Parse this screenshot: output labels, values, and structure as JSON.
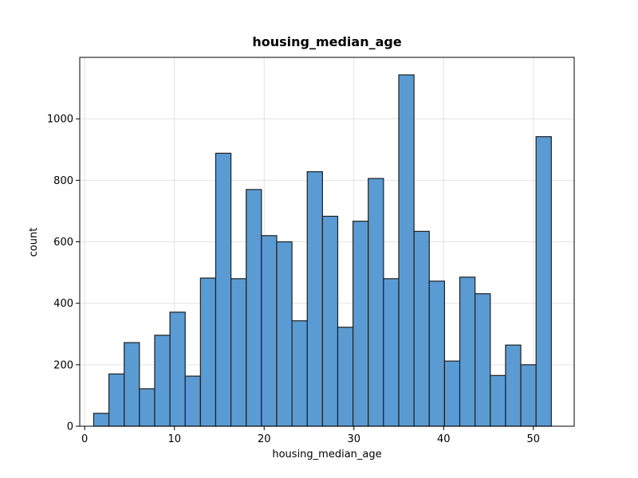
{
  "chart_data": {
    "type": "bar",
    "title": "housing_median_age",
    "xlabel": "housing_median_age",
    "ylabel": "count",
    "xlim": [
      -0.55,
      54.55
    ],
    "ylim": [
      0,
      1200
    ],
    "xticks": [
      0,
      10,
      20,
      30,
      40,
      50
    ],
    "yticks": [
      0,
      200,
      400,
      600,
      800,
      1000
    ],
    "grid": true,
    "bar_color": "#5a9bd4",
    "edge_color": "#1f1f1f",
    "bins": [
      {
        "x0": 1.0,
        "x1": 2.7,
        "count": 42
      },
      {
        "x0": 2.7,
        "x1": 4.4,
        "count": 170
      },
      {
        "x0": 4.4,
        "x1": 6.1,
        "count": 272
      },
      {
        "x0": 6.1,
        "x1": 7.8,
        "count": 122
      },
      {
        "x0": 7.8,
        "x1": 9.5,
        "count": 296
      },
      {
        "x0": 9.5,
        "x1": 11.2,
        "count": 371
      },
      {
        "x0": 11.2,
        "x1": 12.9,
        "count": 163
      },
      {
        "x0": 12.9,
        "x1": 14.6,
        "count": 482
      },
      {
        "x0": 14.6,
        "x1": 16.3,
        "count": 888
      },
      {
        "x0": 16.3,
        "x1": 18.0,
        "count": 480
      },
      {
        "x0": 18.0,
        "x1": 19.7,
        "count": 770
      },
      {
        "x0": 19.7,
        "x1": 21.4,
        "count": 620
      },
      {
        "x0": 21.4,
        "x1": 23.1,
        "count": 600
      },
      {
        "x0": 23.1,
        "x1": 24.8,
        "count": 343
      },
      {
        "x0": 24.8,
        "x1": 26.5,
        "count": 828
      },
      {
        "x0": 26.5,
        "x1": 28.2,
        "count": 683
      },
      {
        "x0": 28.2,
        "x1": 29.9,
        "count": 322
      },
      {
        "x0": 29.9,
        "x1": 31.6,
        "count": 667
      },
      {
        "x0": 31.6,
        "x1": 33.3,
        "count": 806
      },
      {
        "x0": 33.3,
        "x1": 35.0,
        "count": 480
      },
      {
        "x0": 35.0,
        "x1": 36.7,
        "count": 1143
      },
      {
        "x0": 36.7,
        "x1": 38.4,
        "count": 634
      },
      {
        "x0": 38.4,
        "x1": 40.1,
        "count": 472
      },
      {
        "x0": 40.1,
        "x1": 41.8,
        "count": 212
      },
      {
        "x0": 41.8,
        "x1": 43.5,
        "count": 485
      },
      {
        "x0": 43.5,
        "x1": 45.2,
        "count": 431
      },
      {
        "x0": 45.2,
        "x1": 46.9,
        "count": 165
      },
      {
        "x0": 46.9,
        "x1": 48.6,
        "count": 264
      },
      {
        "x0": 48.6,
        "x1": 50.3,
        "count": 200
      },
      {
        "x0": 50.3,
        "x1": 52.0,
        "count": 942
      }
    ]
  }
}
